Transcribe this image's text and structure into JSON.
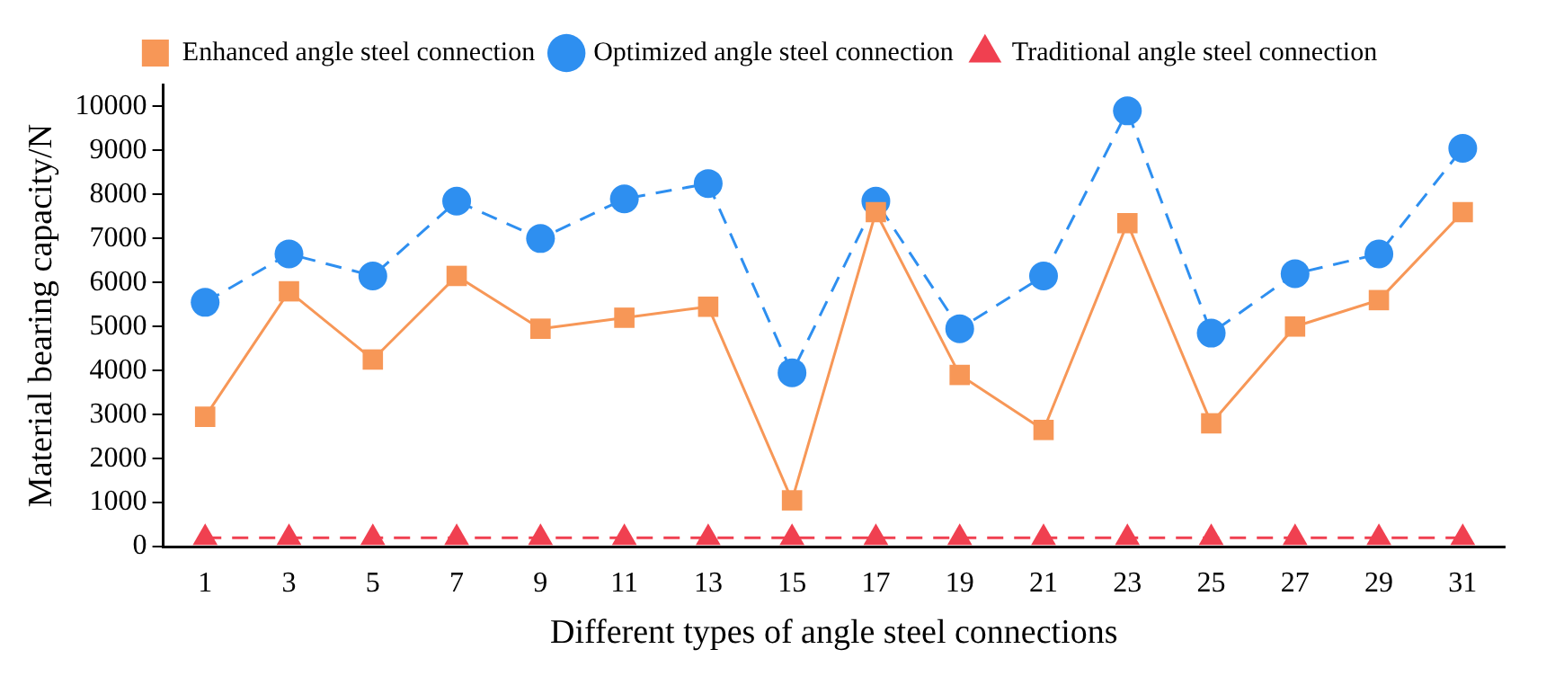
{
  "chart_data": {
    "type": "line",
    "xlabel": "Different types of angle steel connections",
    "ylabel": "Material bearing capacity/N",
    "x": [
      1,
      3,
      5,
      7,
      9,
      11,
      13,
      15,
      17,
      19,
      21,
      23,
      25,
      27,
      29,
      31
    ],
    "xlim": [
      0,
      32
    ],
    "xticks": [
      1,
      3,
      5,
      7,
      9,
      11,
      13,
      15,
      17,
      19,
      21,
      23,
      25,
      27,
      29,
      31
    ],
    "series": [
      {
        "name": "Enhanced angle steel connection",
        "color": "#f79757",
        "marker": "square",
        "line_style": "solid",
        "values": [
          2950,
          5800,
          4250,
          6150,
          4950,
          5200,
          5450,
          1050,
          7600,
          3900,
          2650,
          7350,
          2800,
          5000,
          5600,
          7600
        ]
      },
      {
        "name": "Optimized angle steel connection",
        "color": "#2e8ff0",
        "marker": "circle",
        "line_style": "dashed",
        "values": [
          5550,
          6650,
          6150,
          7850,
          7000,
          7900,
          8250,
          3950,
          7850,
          4950,
          6150,
          9900,
          4850,
          6200,
          6650,
          9050
        ]
      },
      {
        "name": "Traditional angle steel connection",
        "color": "#f04050",
        "marker": "triangle",
        "line_style": "dashed",
        "values": [
          200,
          200,
          200,
          200,
          200,
          200,
          200,
          200,
          200,
          200,
          200,
          200,
          200,
          200,
          200,
          200
        ]
      }
    ],
    "ylim": [
      0,
      10500
    ],
    "yticks": [
      0,
      1000,
      2000,
      3000,
      4000,
      5000,
      6000,
      7000,
      8000,
      9000,
      10000
    ],
    "grid": false,
    "legend": "top"
  }
}
